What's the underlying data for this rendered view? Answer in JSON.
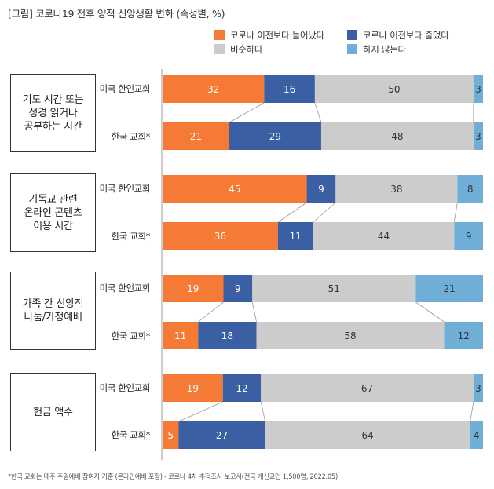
{
  "title": "[그림] 코로나19 전후 양적 신앙생활 변화 (속성별, %)",
  "legend": [
    {
      "key": "increased",
      "label": "코로나 이전보다 늘어났다",
      "color": "#F47A35"
    },
    {
      "key": "decreased",
      "label": "코로나 이전보다 줄었다",
      "color": "#3B5FA3"
    },
    {
      "key": "similar",
      "label": "비슷하다",
      "color": "#CCCCCC"
    },
    {
      "key": "none",
      "label": "하지 않는다",
      "color": "#6FAED6"
    }
  ],
  "chart_data": {
    "type": "bar",
    "orientation": "horizontal-stacked-100",
    "series_names": [
      "코로나 이전보다 늘어났다",
      "코로나 이전보다 줄었다",
      "비슷하다",
      "하지 않는다"
    ],
    "groups": [
      {
        "label": "기도 시간 또는\n성경 읽거나\n공부하는 시간",
        "rows": [
          {
            "label": "미국 한인교회",
            "values": [
              32,
              16,
              50,
              3
            ]
          },
          {
            "label": "한국 교회*",
            "values": [
              21,
              29,
              48,
              3
            ]
          }
        ]
      },
      {
        "label": "기독교 관련\n온라인 콘텐츠\n이용 시간",
        "rows": [
          {
            "label": "미국 한인교회",
            "values": [
              45,
              9,
              38,
              8
            ]
          },
          {
            "label": "한국 교회*",
            "values": [
              36,
              11,
              44,
              9
            ]
          }
        ]
      },
      {
        "label": "가족 간 신앙적\n나눔/가정예배",
        "rows": [
          {
            "label": "미국 한인교회",
            "values": [
              19,
              9,
              51,
              21
            ]
          },
          {
            "label": "한국 교회*",
            "values": [
              11,
              18,
              58,
              12
            ]
          }
        ]
      },
      {
        "label": "헌금 액수",
        "rows": [
          {
            "label": "미국 한인교회",
            "values": [
              19,
              12,
              67,
              3
            ]
          },
          {
            "label": "한국 교회*",
            "values": [
              5,
              27,
              64,
              4
            ]
          }
        ]
      }
    ]
  },
  "footnote": "*한국 교회는 매주 주일예배 참여자 기준 (온라인예배 포함) - 코로나 4차 추적조사 보고서(전국 개신교인 1,500명, 2022.05)"
}
